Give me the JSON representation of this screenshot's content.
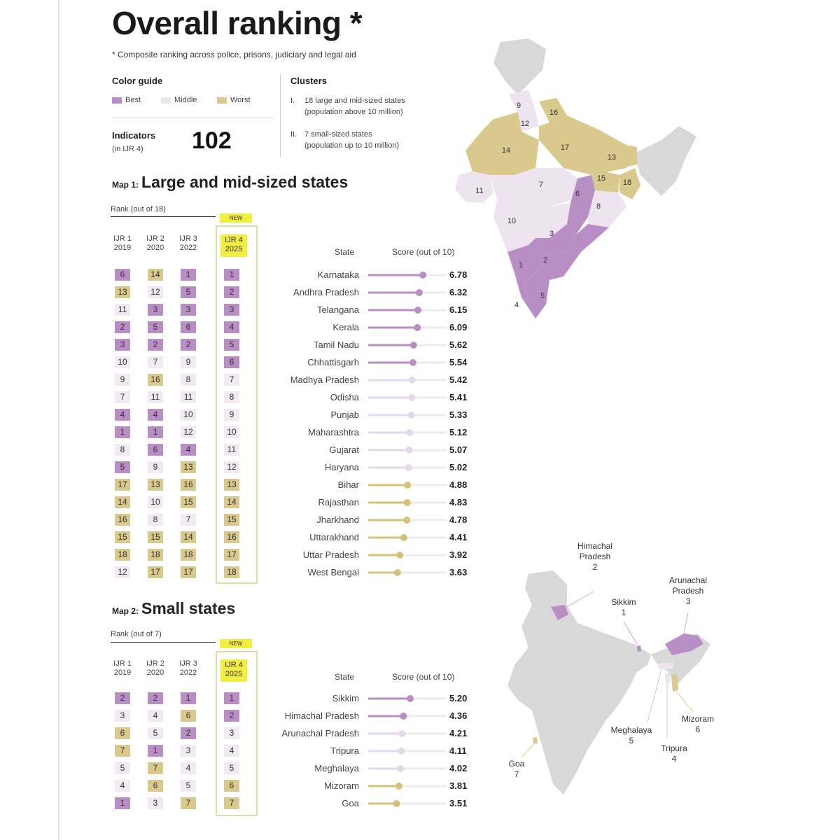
{
  "title": "Overall ranking *",
  "subtitle": "* Composite ranking across police, prisons, judiciary and legal aid",
  "color_guide": {
    "heading": "Color guide",
    "items": [
      {
        "label": "Best",
        "color": "#b98ec4"
      },
      {
        "label": "Middle",
        "color": "#eee4f0"
      },
      {
        "label": "Worst",
        "color": "#d9c98c"
      }
    ]
  },
  "clusters": {
    "heading": "Clusters",
    "items": [
      {
        "num": "I.",
        "line1": "18 large and mid-sized states",
        "line2": "(population above 10 million)"
      },
      {
        "num": "II.",
        "line1": "7 small-sized states",
        "line2": "(population up to 10 million)"
      }
    ]
  },
  "indicators": {
    "label": "Indicators",
    "sub": "(in IJR 4)",
    "value": "102"
  },
  "colors": {
    "best": "#b98ec4",
    "middle": "#eee4f0",
    "worst": "#d9c98c",
    "dot_middle": "#e3d9ea",
    "new": "#f2ee40",
    "map_grey": "#d8d8d8"
  },
  "columns": [
    {
      "l1": "IJR 1",
      "l2": "2019"
    },
    {
      "l1": "IJR 2",
      "l2": "2020"
    },
    {
      "l1": "IJR 3",
      "l2": "2022"
    },
    {
      "l1": "IJR 4",
      "l2": "2025"
    }
  ],
  "new_label": "NEW",
  "state_header": "State",
  "score_header": "Score (out of 10)",
  "chart_data": [
    {
      "type": "table",
      "map_prefix": "Map 1:",
      "title": "Large and mid-sized states",
      "rank_label": "Rank (out of 18)",
      "score_range": [
        0,
        10
      ],
      "rows": [
        {
          "state": "Karnataka",
          "ranks": [
            6,
            14,
            1,
            1
          ],
          "score": 6.78
        },
        {
          "state": "Andhra Pradesh",
          "ranks": [
            13,
            12,
            5,
            2
          ],
          "score": 6.32
        },
        {
          "state": "Telangana",
          "ranks": [
            11,
            3,
            3,
            3
          ],
          "score": 6.15
        },
        {
          "state": "Kerala",
          "ranks": [
            2,
            5,
            6,
            4
          ],
          "score": 6.09
        },
        {
          "state": "Tamil Nadu",
          "ranks": [
            3,
            2,
            2,
            5
          ],
          "score": 5.62
        },
        {
          "state": "Chhattisgarh",
          "ranks": [
            10,
            7,
            9,
            6
          ],
          "score": 5.54
        },
        {
          "state": "Madhya Pradesh",
          "ranks": [
            9,
            16,
            8,
            7
          ],
          "score": 5.42
        },
        {
          "state": "Odisha",
          "ranks": [
            7,
            11,
            11,
            8
          ],
          "score": 5.41
        },
        {
          "state": "Punjab",
          "ranks": [
            4,
            4,
            10,
            9
          ],
          "score": 5.33
        },
        {
          "state": "Maharashtra",
          "ranks": [
            1,
            1,
            12,
            10
          ],
          "score": 5.12
        },
        {
          "state": "Gujarat",
          "ranks": [
            8,
            6,
            4,
            11
          ],
          "score": 5.07
        },
        {
          "state": "Haryana",
          "ranks": [
            5,
            9,
            13,
            12
          ],
          "score": 5.02
        },
        {
          "state": "Bihar",
          "ranks": [
            17,
            13,
            16,
            13
          ],
          "score": 4.88
        },
        {
          "state": "Rajasthan",
          "ranks": [
            14,
            10,
            15,
            14
          ],
          "score": 4.83
        },
        {
          "state": "Jharkhand",
          "ranks": [
            16,
            8,
            7,
            15
          ],
          "score": 4.78
        },
        {
          "state": "Uttarakhand",
          "ranks": [
            15,
            15,
            14,
            16
          ],
          "score": 4.41
        },
        {
          "state": "Uttar Pradesh",
          "ranks": [
            18,
            18,
            18,
            17
          ],
          "score": 3.92
        },
        {
          "state": "West Bengal",
          "ranks": [
            12,
            17,
            17,
            18
          ],
          "score": 3.63
        }
      ]
    },
    {
      "type": "table",
      "map_prefix": "Map 2:",
      "title": "Small states",
      "rank_label": "Rank (out of 7)",
      "score_range": [
        0,
        10
      ],
      "rows": [
        {
          "state": "Sikkim",
          "ranks": [
            2,
            2,
            1,
            1
          ],
          "score": 5.2
        },
        {
          "state": "Himachal Pradesh",
          "ranks": [
            3,
            4,
            6,
            2
          ],
          "score": 4.36
        },
        {
          "state": "Arunachal Pradesh",
          "ranks": [
            6,
            5,
            2,
            3
          ],
          "score": 4.21
        },
        {
          "state": "Tripura",
          "ranks": [
            7,
            1,
            3,
            4
          ],
          "score": 4.11
        },
        {
          "state": "Meghalaya",
          "ranks": [
            5,
            7,
            4,
            5
          ],
          "score": 4.02
        },
        {
          "state": "Mizoram",
          "ranks": [
            4,
            6,
            5,
            6
          ],
          "score": 3.81
        },
        {
          "state": "Goa",
          "ranks": [
            1,
            3,
            7,
            7
          ],
          "score": 3.51
        }
      ]
    }
  ],
  "map1_numbers": [
    "1",
    "2",
    "3",
    "4",
    "5",
    "6",
    "7",
    "8",
    "9",
    "10",
    "11",
    "12",
    "13",
    "14",
    "15",
    "16",
    "17",
    "18"
  ],
  "map2_labels": [
    {
      "name": "Himachal Pradesh",
      "rank": "2"
    },
    {
      "name": "Sikkim",
      "rank": "1"
    },
    {
      "name": "Arunachal Pradesh",
      "rank": "3"
    },
    {
      "name": "Mizoram",
      "rank": "6"
    },
    {
      "name": "Meghalaya",
      "rank": "5"
    },
    {
      "name": "Tripura",
      "rank": "4"
    },
    {
      "name": "Goa",
      "rank": "7"
    }
  ]
}
